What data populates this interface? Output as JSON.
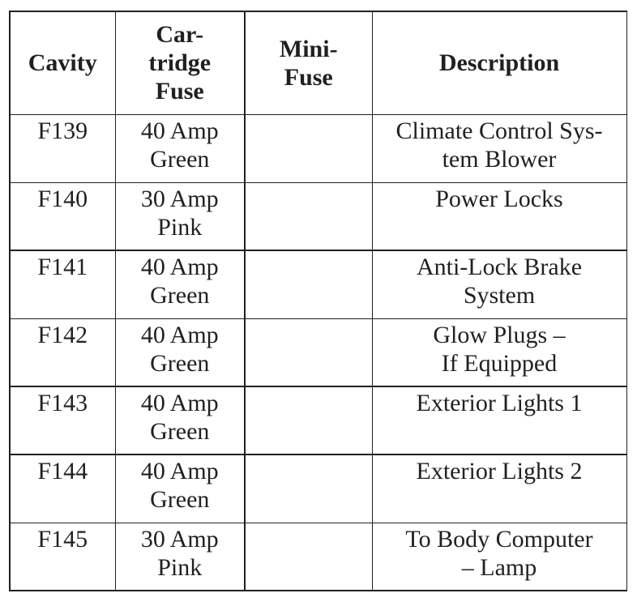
{
  "page": {
    "background": "#ffffff",
    "text_color": "#231f20",
    "border_color": "#231f20"
  },
  "table": {
    "columns": [
      {
        "key": "cavity",
        "label": "Cavity"
      },
      {
        "key": "cartridge_fuse",
        "label": "Car-\ntridge\nFuse"
      },
      {
        "key": "mini_fuse",
        "label": "Mini-\nFuse"
      },
      {
        "key": "description",
        "label": "Description"
      }
    ],
    "rows": [
      {
        "cavity": "F139",
        "cartridge_fuse": "40 Amp\nGreen",
        "mini_fuse": "",
        "description": "Climate Control Sys-\ntem Blower"
      },
      {
        "cavity": "F140",
        "cartridge_fuse": "30 Amp\nPink",
        "mini_fuse": "",
        "description": "Power Locks"
      },
      {
        "cavity": "F141",
        "cartridge_fuse": "40 Amp\nGreen",
        "mini_fuse": "",
        "description": "Anti-Lock Brake\nSystem"
      },
      {
        "cavity": "F142",
        "cartridge_fuse": "40 Amp\nGreen",
        "mini_fuse": "",
        "description": "Glow Plugs –\nIf Equipped"
      },
      {
        "cavity": "F143",
        "cartridge_fuse": "40 Amp\nGreen",
        "mini_fuse": "",
        "description": "Exterior Lights 1"
      },
      {
        "cavity": "F144",
        "cartridge_fuse": "40 Amp\nGreen",
        "mini_fuse": "",
        "description": "Exterior Lights 2"
      },
      {
        "cavity": "F145",
        "cartridge_fuse": "30 Amp\nPink",
        "mini_fuse": "",
        "description": "To Body Computer\n– Lamp"
      }
    ]
  }
}
